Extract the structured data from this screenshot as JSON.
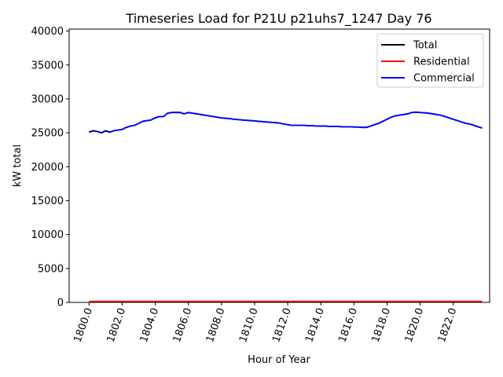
{
  "chart_data": {
    "type": "line",
    "title": "Timeseries Load for P21U p21uhs7_1247  Day 76",
    "xlabel": "Hour of Year",
    "ylabel": "kW total",
    "xlim": [
      1798.8,
      1824.2
    ],
    "ylim": [
      0,
      40300
    ],
    "x_ticks": [
      1800,
      1802,
      1804,
      1806,
      1808,
      1810,
      1812,
      1814,
      1816,
      1818,
      1820,
      1822
    ],
    "x_tick_labels": [
      "1800.0",
      "1802.0",
      "1804.0",
      "1806.0",
      "1808.0",
      "1810.0",
      "1812.0",
      "1814.0",
      "1816.0",
      "1818.0",
      "1820.0",
      "1822.0"
    ],
    "y_ticks": [
      0,
      5000,
      10000,
      15000,
      20000,
      25000,
      30000,
      35000,
      40000
    ],
    "y_tick_labels": [
      "0",
      "5000",
      "10000",
      "15000",
      "20000",
      "25000",
      "30000",
      "35000",
      "40000"
    ],
    "legend_position": "top-right",
    "grid": false,
    "x": [
      1800.0,
      1800.25,
      1800.5,
      1800.75,
      1801.0,
      1801.25,
      1801.5,
      1801.75,
      1802.0,
      1802.25,
      1802.5,
      1802.75,
      1803.0,
      1803.25,
      1803.5,
      1803.75,
      1804.0,
      1804.25,
      1804.5,
      1804.75,
      1805.0,
      1805.25,
      1805.5,
      1805.75,
      1806.0,
      1806.25,
      1806.5,
      1806.75,
      1807.0,
      1807.25,
      1807.5,
      1807.75,
      1808.0,
      1808.25,
      1808.5,
      1808.75,
      1809.0,
      1809.25,
      1809.5,
      1809.75,
      1810.0,
      1810.25,
      1810.5,
      1810.75,
      1811.0,
      1811.25,
      1811.5,
      1811.75,
      1812.0,
      1812.25,
      1812.5,
      1812.75,
      1813.0,
      1813.25,
      1813.5,
      1813.75,
      1814.0,
      1814.25,
      1814.5,
      1814.75,
      1815.0,
      1815.25,
      1815.5,
      1815.75,
      1816.0,
      1816.25,
      1816.5,
      1816.75,
      1817.0,
      1817.25,
      1817.5,
      1817.75,
      1818.0,
      1818.25,
      1818.5,
      1818.75,
      1819.0,
      1819.25,
      1819.5,
      1819.75,
      1820.0,
      1820.25,
      1820.5,
      1820.75,
      1821.0,
      1821.25,
      1821.5,
      1821.75,
      1822.0,
      1822.25,
      1822.5,
      1822.75,
      1823.0,
      1823.25,
      1823.5,
      1823.75
    ],
    "series": [
      {
        "name": "Total",
        "color": "#000000",
        "values": [
          25100,
          25300,
          25200,
          25000,
          25300,
          25100,
          25300,
          25400,
          25500,
          25800,
          26000,
          26100,
          26400,
          26700,
          26800,
          26900,
          27200,
          27400,
          27400,
          27900,
          28000,
          28000,
          28000,
          27800,
          28000,
          27900,
          27800,
          27700,
          27600,
          27500,
          27400,
          27300,
          27200,
          27150,
          27100,
          27000,
          26950,
          26900,
          26850,
          26800,
          26750,
          26700,
          26650,
          26600,
          26550,
          26500,
          26450,
          26300,
          26200,
          26100,
          26100,
          26100,
          26100,
          26050,
          26050,
          26000,
          26000,
          26000,
          25950,
          25950,
          25950,
          25900,
          25900,
          25900,
          25850,
          25850,
          25800,
          25800,
          26000,
          26200,
          26400,
          26700,
          27000,
          27300,
          27500,
          27600,
          27700,
          27800,
          28000,
          28050,
          28000,
          27950,
          27900,
          27800,
          27700,
          27600,
          27400,
          27200,
          27000,
          26800,
          26600,
          26400,
          26300,
          26100,
          25900,
          25700
        ],
        "partial_values": [
          25100,
          25300,
          25200,
          25000,
          25300,
          25100
        ]
      },
      {
        "name": "Residential",
        "color": "#ff0000",
        "values": [
          150,
          150,
          150,
          150,
          150,
          150,
          150,
          150,
          150,
          150,
          150,
          150,
          150,
          150,
          150,
          150,
          150,
          150,
          150,
          150,
          150,
          150,
          150,
          150,
          150,
          150,
          150,
          150,
          150,
          150,
          150,
          150,
          150,
          150,
          150,
          150,
          150,
          150,
          150,
          150,
          150,
          150,
          150,
          150,
          150,
          150,
          150,
          150,
          150,
          150,
          150,
          150,
          150,
          150,
          150,
          150,
          150,
          150,
          150,
          150,
          150,
          150,
          150,
          150,
          150,
          150,
          150,
          150,
          150,
          150,
          150,
          150,
          150,
          150,
          150,
          150,
          150,
          150,
          150,
          150,
          150,
          150,
          150,
          150,
          150,
          150,
          150,
          150,
          150,
          150,
          150,
          150,
          150,
          150,
          150,
          150
        ]
      },
      {
        "name": "Commercial",
        "color": "#0000ff",
        "values": [
          25100,
          25300,
          25200,
          25000,
          25300,
          25100,
          25300,
          25400,
          25500,
          25800,
          26000,
          26100,
          26400,
          26700,
          26800,
          26900,
          27200,
          27400,
          27400,
          27900,
          28000,
          28000,
          28000,
          27800,
          28000,
          27900,
          27800,
          27700,
          27600,
          27500,
          27400,
          27300,
          27200,
          27150,
          27100,
          27000,
          26950,
          26900,
          26850,
          26800,
          26750,
          26700,
          26650,
          26600,
          26550,
          26500,
          26450,
          26300,
          26200,
          26100,
          26100,
          26100,
          26100,
          26050,
          26050,
          26000,
          26000,
          26000,
          25950,
          25950,
          25950,
          25900,
          25900,
          25900,
          25850,
          25850,
          25800,
          25800,
          26000,
          26200,
          26400,
          26700,
          27000,
          27300,
          27500,
          27600,
          27700,
          27800,
          28000,
          28050,
          28000,
          27950,
          27900,
          27800,
          27700,
          27600,
          27400,
          27200,
          27000,
          26800,
          26600,
          26400,
          26300,
          26100,
          25900,
          25700
        ]
      }
    ]
  }
}
